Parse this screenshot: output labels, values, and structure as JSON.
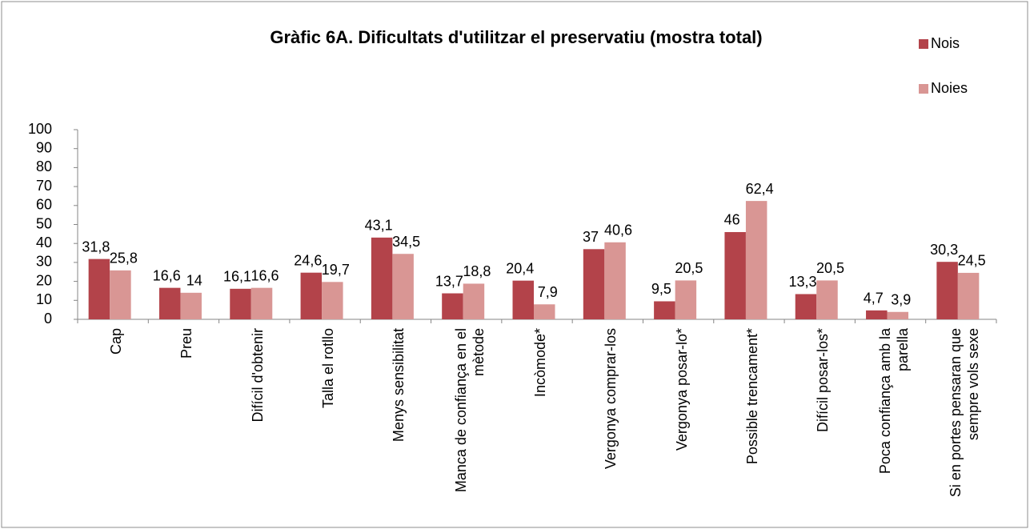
{
  "chart_data": {
    "type": "bar",
    "title": "Gràfic 6A. Dificultats d'utilitzar el preservatiu (mostra total)",
    "categories": [
      "Cap",
      "Preu",
      "Difícil d'obtenir",
      "Talla el rotllo",
      "Menys sensibilitat",
      "Manca de confiança en el mètode",
      "Incòmode*",
      "Vergonya comprar-los",
      "Vergonya posar-lo*",
      "Possible trencament*",
      "Difícil posar-los*",
      "Poca confiança amb la parella",
      "Si en portes pensaran que sempre vols sexe"
    ],
    "series": [
      {
        "name": "Nois",
        "color": "#b3434a",
        "values": [
          31.8,
          16.6,
          16.1,
          24.6,
          43.1,
          13.7,
          20.4,
          37,
          9.5,
          46,
          13.3,
          4.7,
          30.3
        ],
        "value_labels": [
          "31,8",
          "16,6",
          "16,1",
          "24,6",
          "43,1",
          "13,7",
          "20,4",
          "37",
          "9,5",
          "46",
          "13,3",
          "4,7",
          "30,3"
        ]
      },
      {
        "name": "Noies",
        "color": "#d99694",
        "values": [
          25.8,
          14,
          16.6,
          19.7,
          34.5,
          18.8,
          7.9,
          40.6,
          20.5,
          62.4,
          20.5,
          3.9,
          24.5
        ],
        "value_labels": [
          "25,8",
          "14",
          "16,6",
          "19,7",
          "34,5",
          "18,8",
          "7,9",
          "40,6",
          "20,5",
          "62,4",
          "20,5",
          "3,9",
          "24,5"
        ]
      }
    ],
    "ylim": [
      0,
      100
    ],
    "yticks": [
      0,
      10,
      20,
      30,
      40,
      50,
      60,
      70,
      80,
      90,
      100
    ],
    "grid": false,
    "legend": "top-right"
  }
}
